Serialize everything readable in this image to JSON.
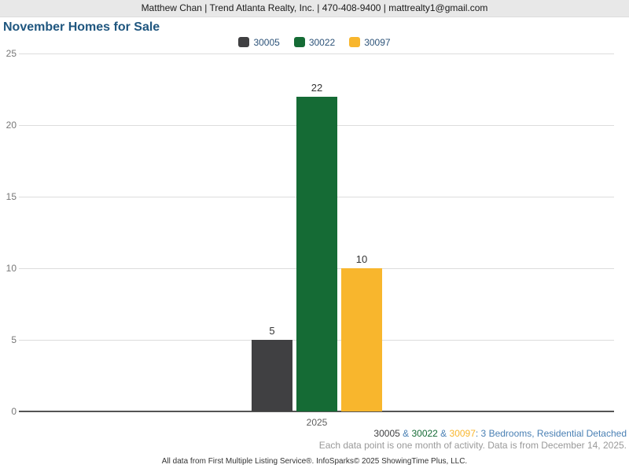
{
  "header": {
    "contact_line": "Matthew Chan | Trend Atlanta Realty, Inc. | 470-408-9400 | mattrealty1@gmail.com"
  },
  "title": "November Homes for Sale",
  "colors": {
    "gray": "#404042",
    "green": "#156b35",
    "yellow": "#f8b62d",
    "blue_text": "#4a80b4",
    "title_blue": "#1f567f"
  },
  "legend": {
    "items": [
      {
        "label": "30005",
        "color": "#404042"
      },
      {
        "label": "30022",
        "color": "#156b35"
      },
      {
        "label": "30097",
        "color": "#f8b62d"
      }
    ]
  },
  "chart_data": {
    "type": "bar",
    "title": "November Homes for Sale",
    "categories": [
      "2025"
    ],
    "series": [
      {
        "name": "30005",
        "color": "#404042",
        "values": [
          5
        ]
      },
      {
        "name": "30022",
        "color": "#156b35",
        "values": [
          22
        ]
      },
      {
        "name": "30097",
        "color": "#f8b62d",
        "values": [
          10
        ]
      }
    ],
    "xlabel": "",
    "ylabel": "",
    "ylim": [
      0,
      25
    ],
    "yticks": [
      0,
      5,
      10,
      15,
      20,
      25
    ],
    "grid": "horizontal",
    "legend_position": "top-center"
  },
  "footer": {
    "attribution_segments": [
      {
        "text": "30005",
        "color": "#404042"
      },
      {
        "text": " & ",
        "color": "#4a80b4"
      },
      {
        "text": "30022",
        "color": "#156b35"
      },
      {
        "text": " & ",
        "color": "#4a80b4"
      },
      {
        "text": "30097",
        "color": "#f8b62d"
      },
      {
        "text": ": 3 Bedrooms, Residential Detached",
        "color": "#4a80b4"
      }
    ],
    "data_note": "Each data point is one month of activity. Data is from December 14, 2025.",
    "copyright": "All data from First Multiple Listing Service®. InfoSparks© 2025 ShowingTime Plus, LLC."
  }
}
